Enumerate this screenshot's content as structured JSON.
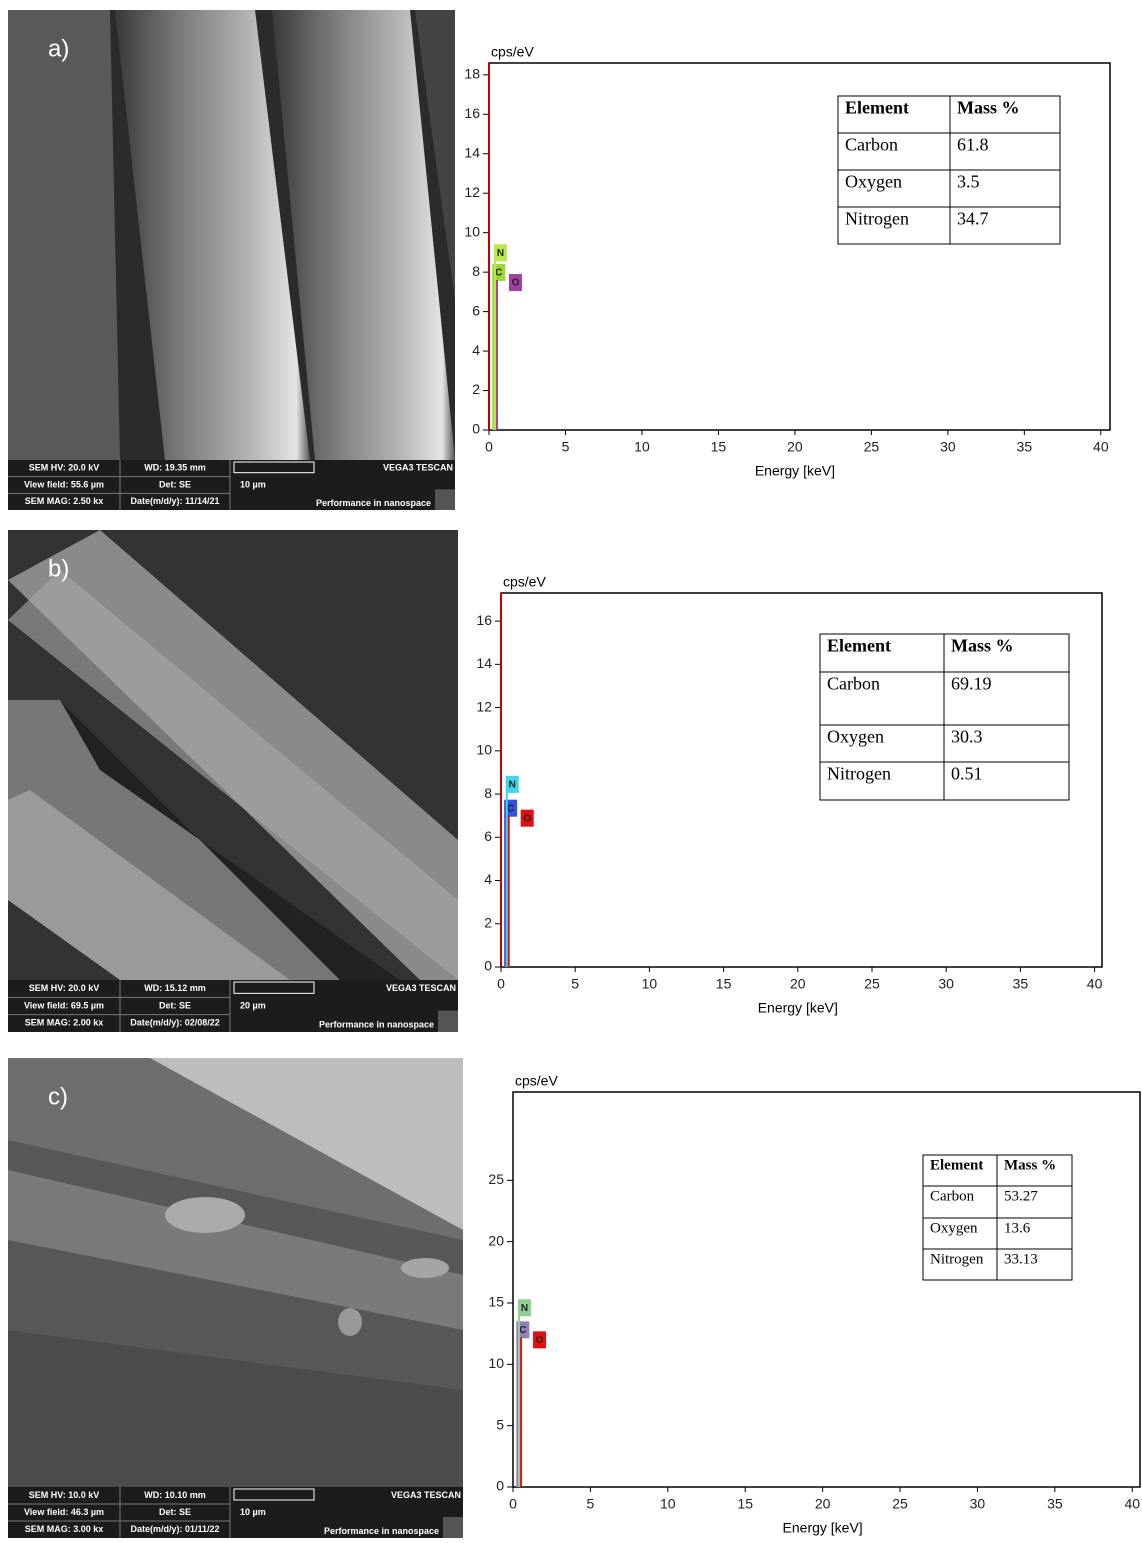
{
  "sem_images": [
    {
      "label": "a)",
      "info": {
        "hv": "SEM HV: 20.0 kV",
        "wd": "WD: 19.35 mm",
        "brand": "VEGA3 TESCAN",
        "view_field": "View field: 55.6 µm",
        "detector": "Det: SE",
        "scale": "10 µm",
        "mag": "SEM MAG: 2.50 kx",
        "date": "Date(m/d/y): 11/14/21",
        "slogan": "Performance in nanospace"
      }
    },
    {
      "label": "b)",
      "info": {
        "hv": "SEM HV: 20.0 kV",
        "wd": "WD: 15.12 mm",
        "brand": "VEGA3 TESCAN",
        "view_field": "View field: 69.5 µm",
        "detector": "Det: SE",
        "scale": "20 µm",
        "mag": "SEM MAG: 2.00 kx",
        "date": "Date(m/d/y): 02/08/22",
        "slogan": "Performance in nanospace"
      }
    },
    {
      "label": "c)",
      "info": {
        "hv": "SEM HV: 10.0 kV",
        "wd": "WD: 10.10 mm",
        "brand": "VEGA3 TESCAN",
        "view_field": "View field: 46.3 µm",
        "detector": "Det: SE",
        "scale": "10 µm",
        "mag": "SEM MAG: 3.00 kx",
        "date": "Date(m/d/y): 01/11/22",
        "slogan": "Performance in nanospace"
      }
    }
  ],
  "chart_data": [
    {
      "type": "spectrum",
      "y_label": "cps/eV",
      "x_label": "Energy [keV]",
      "xlim": [
        0,
        40.6
      ],
      "xticks": [
        0,
        5,
        10,
        15,
        20,
        25,
        30,
        35,
        40
      ],
      "ylim": [
        0,
        18.6
      ],
      "yticks": [
        0,
        2,
        4,
        6,
        8,
        10,
        12,
        14,
        16,
        18
      ],
      "peaks": [
        {
          "energy": 0,
          "value": 18.6,
          "color": "#c00000"
        },
        {
          "label": "C",
          "energy": 0.28,
          "value": 7.6,
          "color": "#9ad83c"
        },
        {
          "label": "N",
          "energy": 0.39,
          "value": 8.6,
          "color": "#b6ec4a"
        },
        {
          "label": "O",
          "energy": 0.52,
          "value": 7.6,
          "color": "#a040a0"
        }
      ],
      "table": {
        "header": [
          "Element",
          "Mass %"
        ],
        "rows": [
          [
            "Carbon",
            61.8
          ],
          [
            "Oxygen",
            3.5
          ],
          [
            "Nitrogen",
            34.7
          ]
        ]
      }
    },
    {
      "type": "spectrum",
      "y_label": "cps/eV",
      "x_label": "Energy [keV]",
      "xlim": [
        0,
        40.5
      ],
      "xticks": [
        0,
        5,
        10,
        15,
        20,
        25,
        30,
        35,
        40
      ],
      "ylim": [
        0,
        17.3
      ],
      "yticks": [
        0,
        2,
        4,
        6,
        8,
        10,
        12,
        14,
        16
      ],
      "peaks": [
        {
          "energy": 0,
          "value": 17.3,
          "color": "#c00000"
        },
        {
          "label": "C",
          "energy": 0.28,
          "value": 7.0,
          "color": "#3050e0"
        },
        {
          "label": "N",
          "energy": 0.39,
          "value": 8.1,
          "color": "#40d8e8"
        },
        {
          "label": "O",
          "energy": 0.52,
          "value": 7.0,
          "color": "#e01010"
        }
      ],
      "table": {
        "header": [
          "Element",
          "Mass %"
        ],
        "rows": [
          [
            "Carbon",
            69.19
          ],
          [
            "Oxygen",
            30.3
          ],
          [
            "Nitrogen",
            0.51
          ]
        ]
      }
    },
    {
      "type": "spectrum",
      "y_label": "cps/eV",
      "x_label": "Energy [keV]",
      "xlim": [
        0,
        40.5
      ],
      "xticks": [
        0,
        5,
        10,
        15,
        20,
        25,
        30,
        35,
        40
      ],
      "ylim": [
        0,
        32.2
      ],
      "yticks": [
        0,
        5,
        10,
        15,
        20,
        25
      ],
      "peaks": [
        {
          "label": "C",
          "energy": 0.28,
          "value": 12.2,
          "color": "#9080c0"
        },
        {
          "label": "N",
          "energy": 0.39,
          "value": 14.0,
          "color": "#90d090"
        },
        {
          "label": "O",
          "energy": 0.52,
          "value": 12.2,
          "color": "#e01010"
        }
      ],
      "table": {
        "header": [
          "Element",
          "Mass %"
        ],
        "rows": [
          [
            "Carbon",
            53.27
          ],
          [
            "Oxygen",
            13.6
          ],
          [
            "Nitrogen",
            33.13
          ]
        ]
      }
    }
  ]
}
